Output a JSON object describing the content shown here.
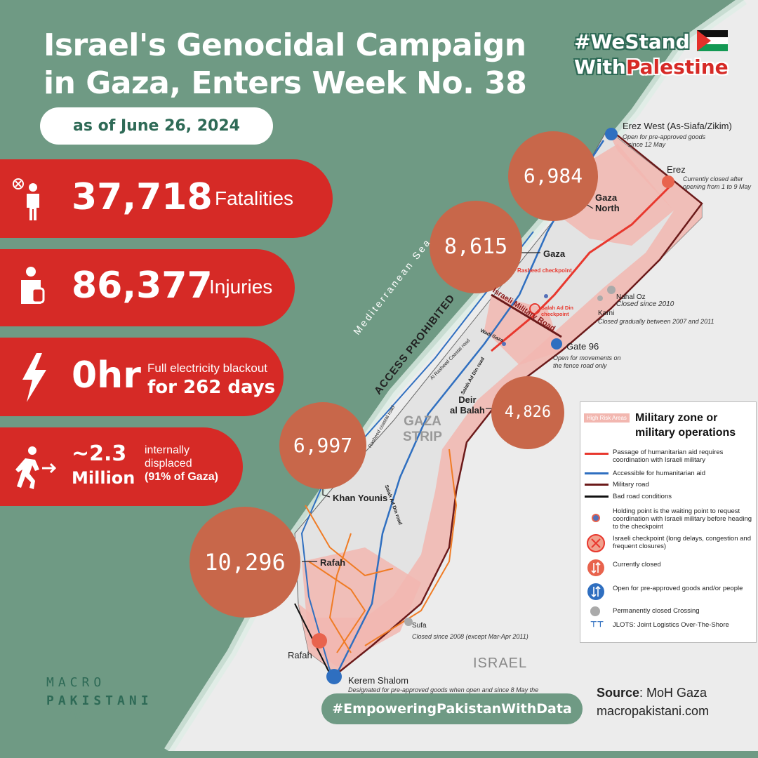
{
  "header": {
    "title_line1": "Israel's Genocidal Campaign",
    "title_line2": "in Gaza, Enters Week No. 38",
    "date": "as of June 26, 2024"
  },
  "hashtag": {
    "line1": "#WeStand",
    "line2_a": "With",
    "line2_b": "Palestine"
  },
  "stats": {
    "fatalities": {
      "value": "37,718",
      "label": "Fatalities"
    },
    "injuries": {
      "value": "86,377",
      "label": "Injuries"
    },
    "electricity": {
      "value": "0hr",
      "label1": "Full electricity blackout",
      "label2": "for 262 days"
    },
    "displaced": {
      "value1": "~2.3",
      "value2": "Million",
      "label1": "internally",
      "label2": "displaced",
      "label3": "(91% of Gaza)"
    }
  },
  "regions": [
    {
      "value": "6,984",
      "name1": "Gaza",
      "name2": "North"
    },
    {
      "value": "8,615",
      "name1": "Gaza",
      "name2": ""
    },
    {
      "value": "4,826",
      "name1": "Deir",
      "name2": "al Balah"
    },
    {
      "value": "6,997",
      "name1": "Khan Younis",
      "name2": ""
    },
    {
      "value": "10,296",
      "name1": "Rafah",
      "name2": ""
    }
  ],
  "map_labels": {
    "sea1": "Mediterranean Sea",
    "sea2": "ACCESS PROHIBITED",
    "strip1": "GAZA",
    "strip2": "STRIP",
    "israel": "ISRAEL",
    "rafah_crossing": "Rafah",
    "rasheed": "Rasheed checkpoint",
    "military_road": "Israeli Military Road",
    "salah_checkpoint1": "Salah Ad Din",
    "salah_checkpoint2": "checkpoint",
    "wadi_gaza": "Wadi Gaza",
    "al_rasheed_road": "Al Rasheed Coastal road",
    "salah_road": "Salah Ad Din road",
    "coastal_road": "Rasheed coastal road",
    "salah_road2": "Salah Ad Din road"
  },
  "crossings": {
    "erez_west": {
      "name": "Erez West (As-Siafa/Zikim)",
      "note1": "Open for pre-approved goods",
      "note2": "since 12 May"
    },
    "erez": {
      "name": "Erez",
      "note1": "Currently closed after",
      "note2": "opening from 1 to 9 May"
    },
    "nahal_oz": {
      "name": "Nahal Oz",
      "note": "Closed since 2010"
    },
    "karni": {
      "name": "Karni",
      "note": "Closed gradually between 2007 and 2011"
    },
    "gate96": {
      "name": "Gate 96",
      "note1": "Open for movements on",
      "note2": "the fence road only"
    },
    "sufa": {
      "name": "Sufa",
      "note": "Closed since  2008 (except Mar-Apr 2011)"
    },
    "kerem": {
      "name": "Kerem Shalom",
      "note": "Designated for pre-approved goods when open and since 8 May the"
    }
  },
  "legend": {
    "badge": "High Risk Areas",
    "title1": "Military zone or",
    "title2": "military operations",
    "items": [
      "Passage of humanitarian aid requires coordination with Israeli military",
      "Accessible for humanitarian aid",
      "Military road",
      "Bad road conditions",
      "Holding point is the waiting point to request coordination with Israeli military before heading to the checkpoint",
      "Israeli checkpoint (long delays, congestion and frequent closures)",
      "Currently closed",
      "Open for pre-approved goods and/or people",
      "Permanently closed Crossing",
      "JLOTS: Joint Logistics Over-The-Shore"
    ],
    "colors": {
      "red": "#e8382e",
      "blue": "#2f6fc0",
      "maroon": "#6b1a1a",
      "black": "#111111"
    }
  },
  "footer": {
    "hashtag": "#EmpoweringPakistanWithData",
    "source_label": "Source",
    "source_value": ": MoH Gaza",
    "website": "macropakistani.com",
    "logo1": "MACRO",
    "logo2": "PAKISTANI"
  },
  "colors": {
    "green": "#6f9a84",
    "red": "#d62a26",
    "circle": "#c8674a",
    "land": "#ececec",
    "zone": "#f2b7b0"
  }
}
